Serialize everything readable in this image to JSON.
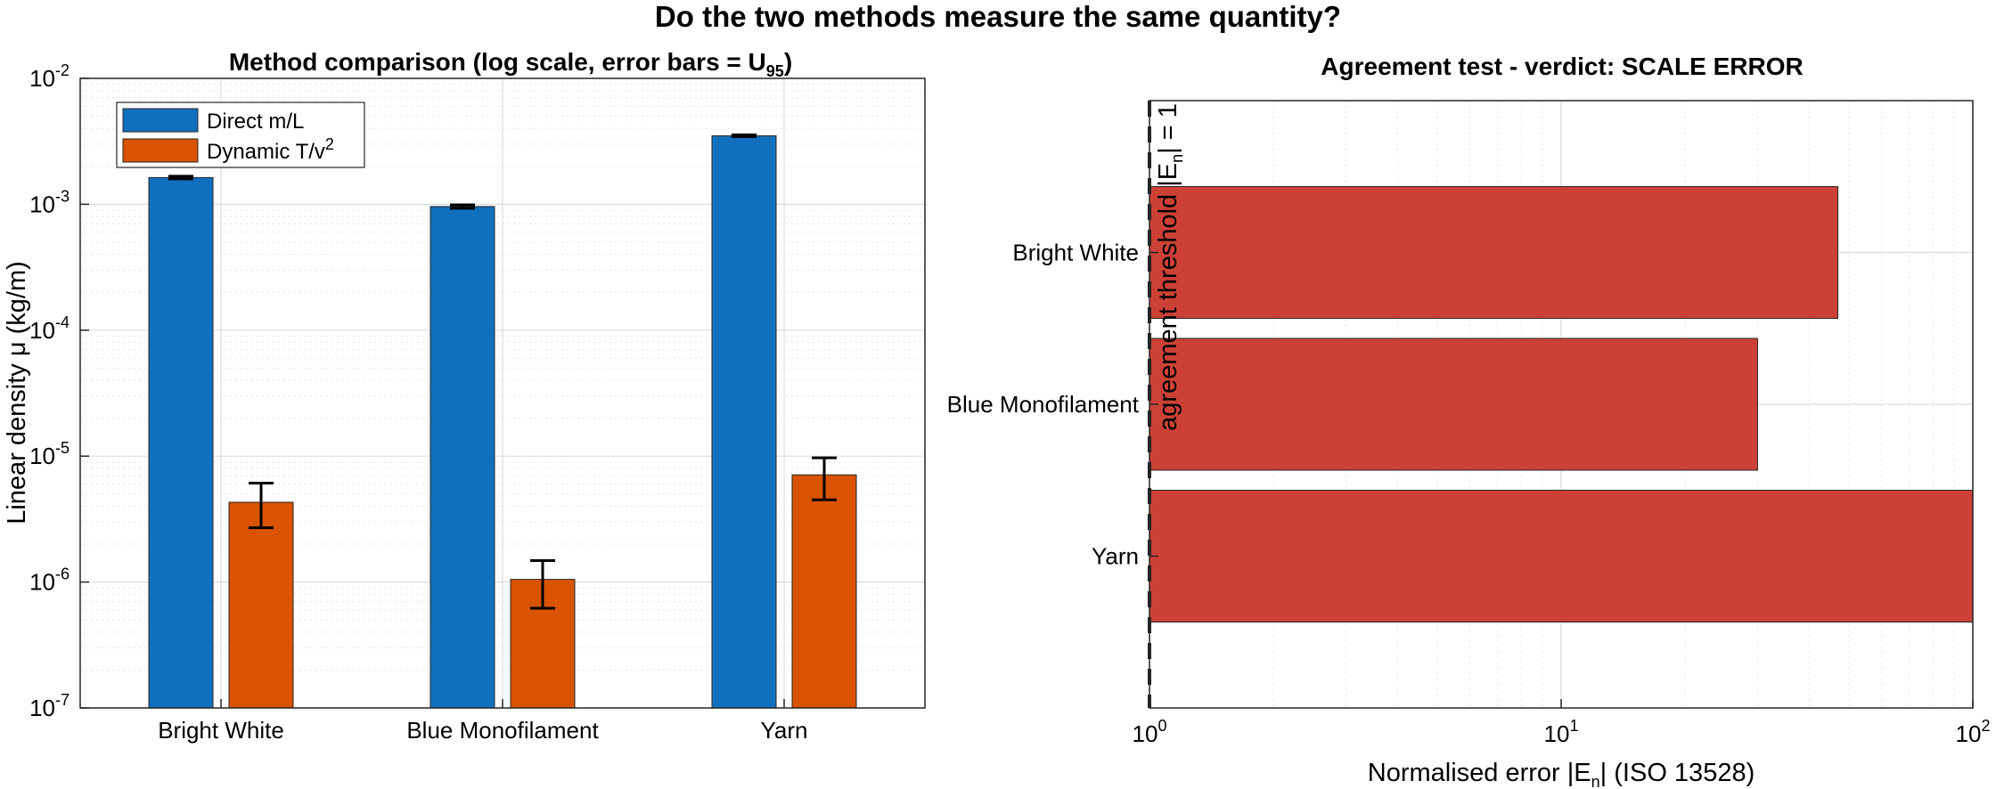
{
  "figure": {
    "title": "Do the two methods measure the same quantity?"
  },
  "chart_data": [
    {
      "type": "bar",
      "title": "Method comparison (log scale, error bars = U",
      "title_sub": "95",
      "title_end": ")",
      "categories": [
        "Bright White",
        "Blue Monofilament",
        "Yarn"
      ],
      "ylabel": "Linear density  μ  (kg/m)",
      "yscale": "log",
      "ylim": [
        1e-07,
        0.01
      ],
      "yticks": [
        {
          "base": "10",
          "exp": "-7",
          "value": 1e-07
        },
        {
          "base": "10",
          "exp": "-6",
          "value": 1e-06
        },
        {
          "base": "10",
          "exp": "-5",
          "value": 1e-05
        },
        {
          "base": "10",
          "exp": "-4",
          "value": 0.0001
        },
        {
          "base": "10",
          "exp": "-3",
          "value": 0.001
        },
        {
          "base": "10",
          "exp": "-2",
          "value": 0.01
        }
      ],
      "grid": true,
      "legend_position": "top-left",
      "series": [
        {
          "name": "Direct  m/L",
          "color": "#1170BE",
          "values": [
            0.00163,
            0.00096,
            0.0035
          ],
          "err_low": [
            0.00159,
            0.00093,
            0.00344
          ],
          "err_high": [
            0.00167,
            0.00099,
            0.00356
          ]
        },
        {
          "name": "Dynamic   T/v",
          "name_sup": "2",
          "color": "#D95300",
          "values": [
            4.3e-06,
            1.05e-06,
            7.1e-06
          ],
          "err_low": [
            2.7e-06,
            6.2e-07,
            4.5e-06
          ],
          "err_high": [
            6.1e-06,
            1.48e-06,
            9.7e-06
          ]
        }
      ]
    },
    {
      "type": "bar",
      "orientation": "horizontal",
      "title": "Agreement test - verdict: SCALE ERROR",
      "categories": [
        "Bright White",
        "Blue Monofilament",
        "Yarn"
      ],
      "values": [
        47,
        30,
        100
      ],
      "color": "#CC4136",
      "xlabel_pre": "Normalised error  |E",
      "xlabel_sub": "n",
      "xlabel_post": "|   (ISO 13528)",
      "xscale": "log",
      "xlim": [
        1,
        100
      ],
      "xticks": [
        {
          "base": "10",
          "exp": "0",
          "value": 1
        },
        {
          "base": "10",
          "exp": "1",
          "value": 10
        },
        {
          "base": "10",
          "exp": "2",
          "value": 100
        }
      ],
      "grid": true,
      "threshold": {
        "value": 1,
        "label_pre": "agreement  threshold  |E",
        "label_sub": "n",
        "label_post": "|  =  1"
      }
    }
  ]
}
